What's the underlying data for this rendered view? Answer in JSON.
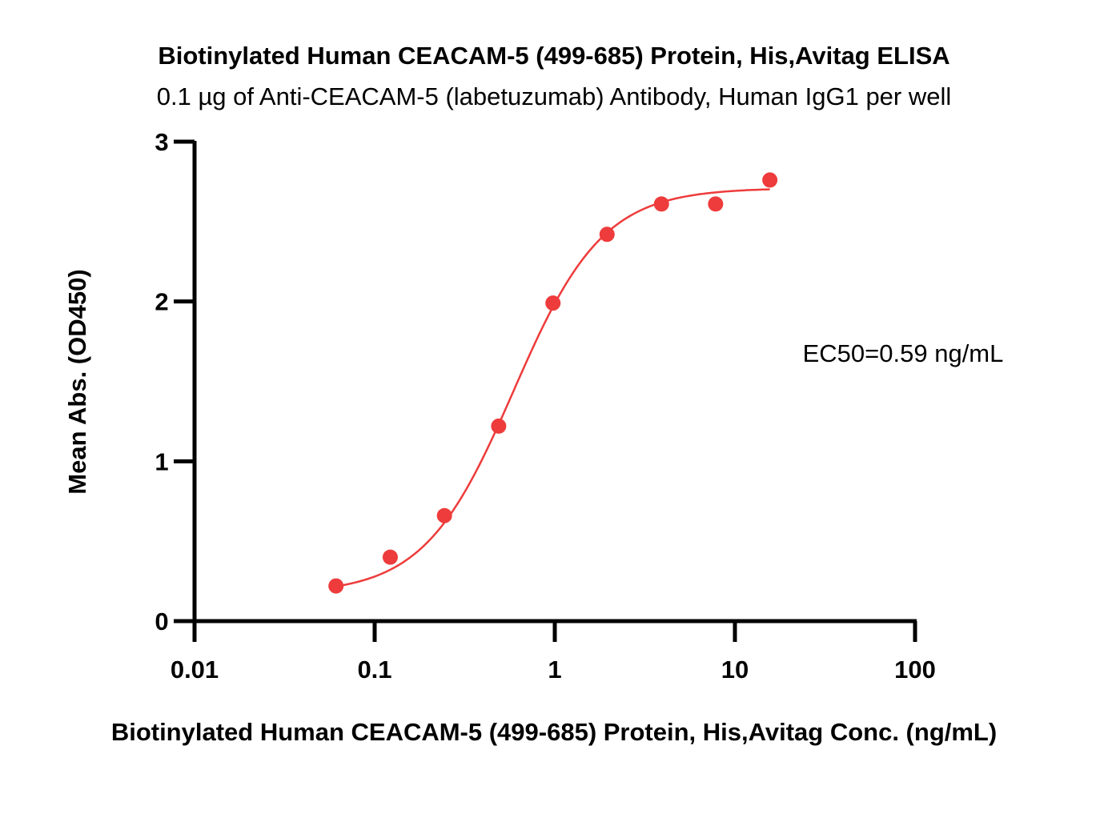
{
  "chart_data": {
    "type": "scatter",
    "title": "Biotinylated Human CEACAM-5 (499-685) Protein, His,Avitag ELISA",
    "subtitle": "0.1 µg of Anti-CEACAM-5 (labetuzumab) Antibody, Human IgG1 per well",
    "xlabel": "Biotinylated Human CEACAM-5 (499-685) Protein, His,Avitag Conc. (ng/mL)",
    "ylabel": "Mean Abs. (OD450)",
    "x_scale": "log",
    "xlim": [
      0.01,
      100
    ],
    "ylim": [
      0,
      3
    ],
    "x_ticks": [
      0.01,
      0.1,
      1,
      10,
      100
    ],
    "x_tick_labels": [
      "0.01",
      "0.1",
      "1",
      "10",
      "100"
    ],
    "y_ticks": [
      0,
      1,
      2,
      3
    ],
    "y_tick_labels": [
      "0",
      "1",
      "2",
      "3"
    ],
    "grid": false,
    "series": [
      {
        "points": [
          {
            "x": 0.061,
            "y": 0.22
          },
          {
            "x": 0.122,
            "y": 0.4
          },
          {
            "x": 0.244,
            "y": 0.66
          },
          {
            "x": 0.488,
            "y": 1.22
          },
          {
            "x": 0.977,
            "y": 1.99
          },
          {
            "x": 1.95,
            "y": 2.42
          },
          {
            "x": 3.91,
            "y": 2.61
          },
          {
            "x": 7.81,
            "y": 2.61
          },
          {
            "x": 15.63,
            "y": 2.76
          }
        ],
        "fit": {
          "model": "4PL",
          "bottom": 0.17,
          "top": 2.71,
          "ec50": 0.59,
          "hill": 1.75,
          "x_range": [
            0.061,
            15.63
          ]
        }
      }
    ],
    "annotation": "EC50=0.59 ng/mL",
    "colors": {
      "series": "#ee3b3b",
      "axis": "#000000"
    }
  }
}
